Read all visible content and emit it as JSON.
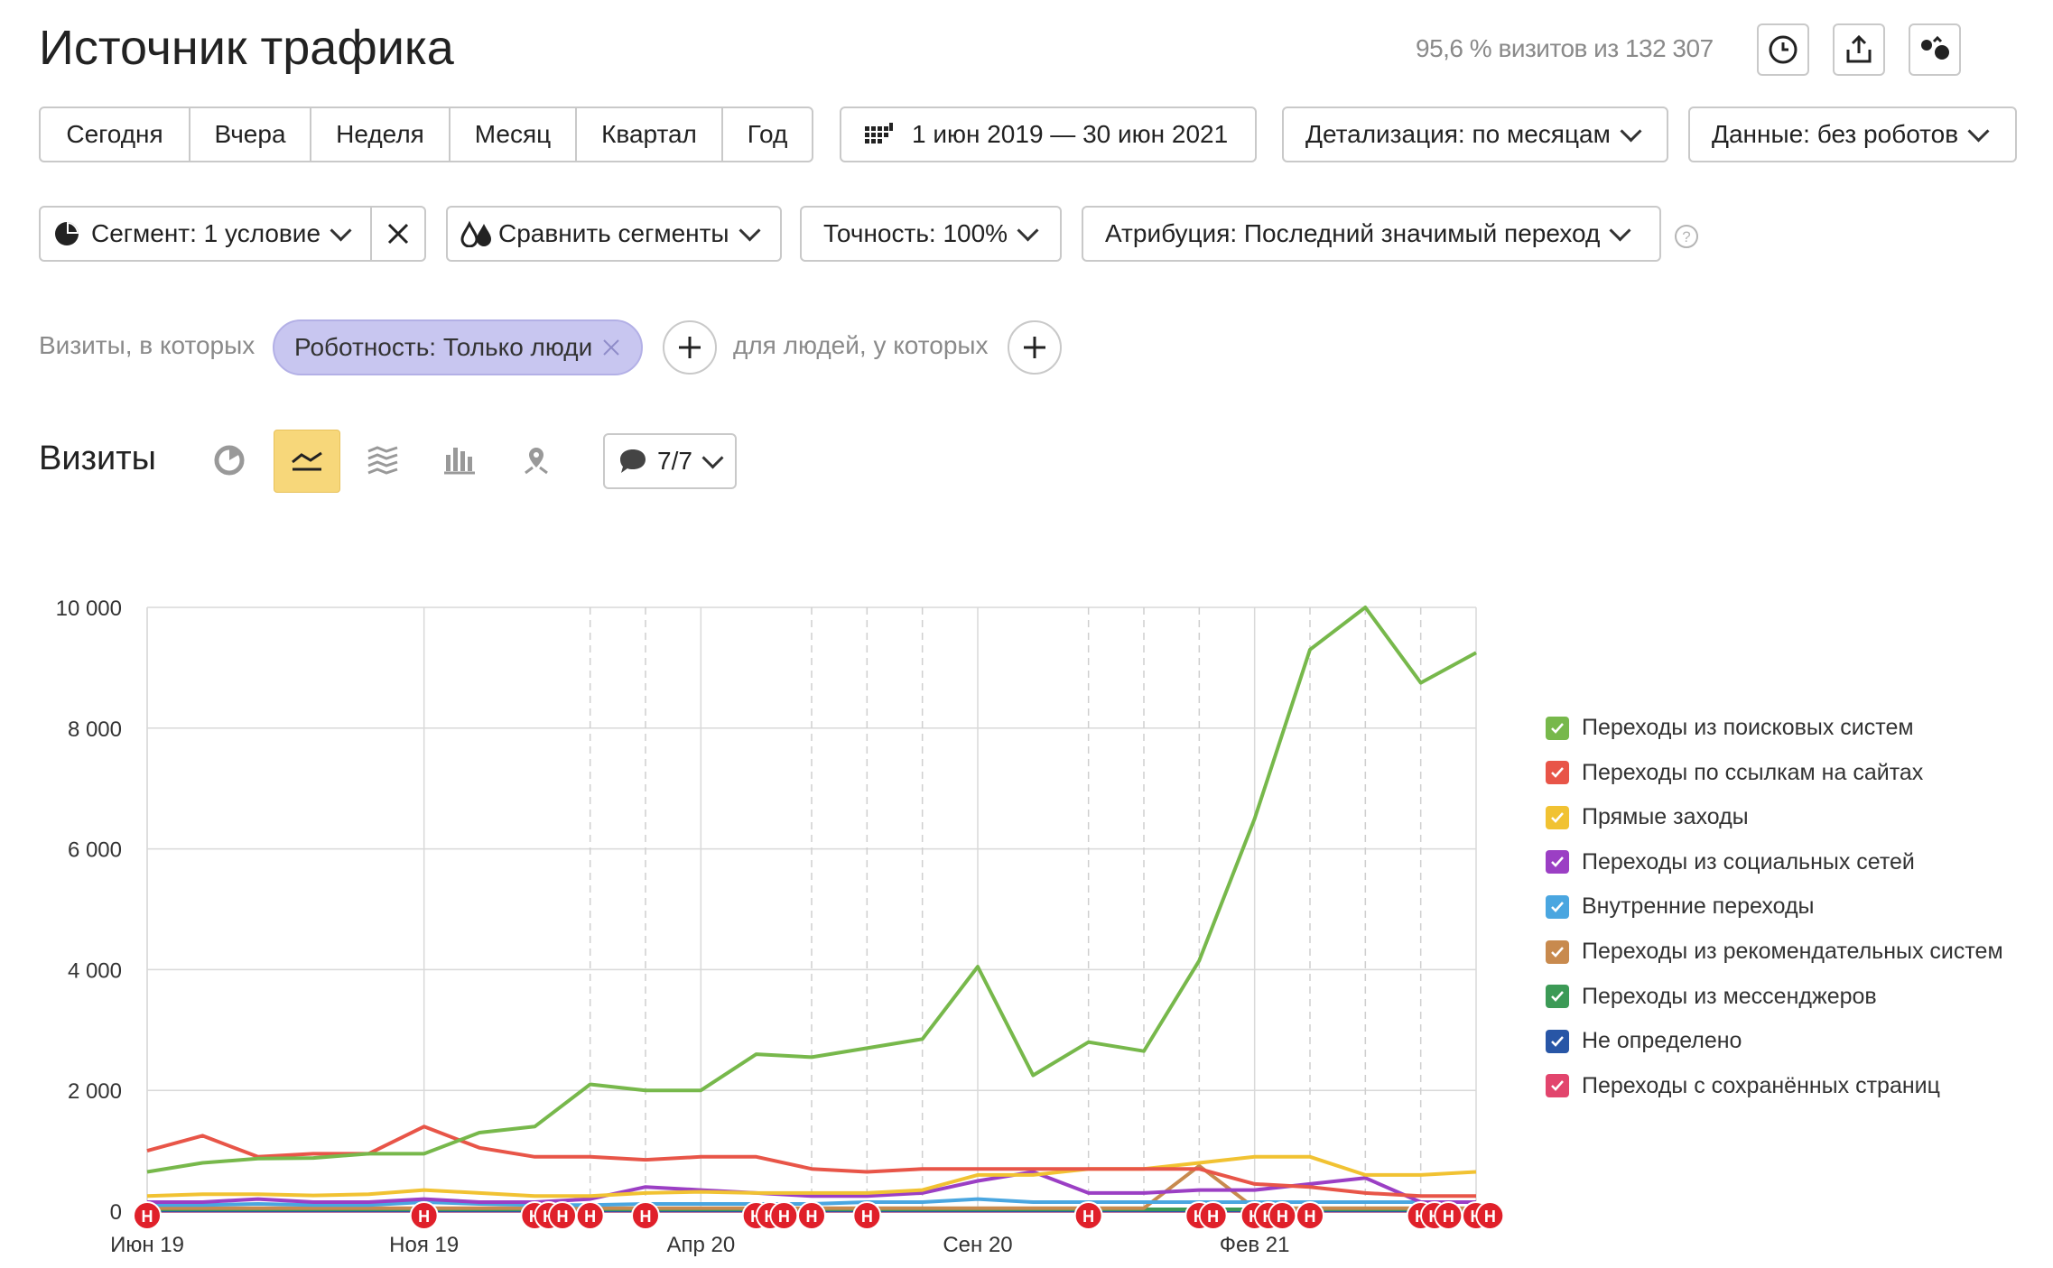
{
  "header": {
    "title": "Источник трафика",
    "visits_stat": "95,6 % визитов из 132 307",
    "actions": [
      {
        "name": "clock-icon"
      },
      {
        "name": "export-icon"
      },
      {
        "name": "favorite-icon"
      }
    ]
  },
  "period_buttons": [
    "Сегодня",
    "Вчера",
    "Неделя",
    "Месяц",
    "Квартал",
    "Год"
  ],
  "date_range": {
    "icon": "calendar-icon",
    "label": "1 июн 2019 — 30 июн 2021"
  },
  "detail": {
    "label": "Детализация: по месяцам"
  },
  "data_filter": {
    "label": "Данные: без роботов"
  },
  "segment": {
    "icon": "pie-icon",
    "label": "Сегмент: 1 условие"
  },
  "compare": {
    "icon": "drops-icon",
    "label": "Сравнить сегменты"
  },
  "accuracy": {
    "label": "Точность: 100%"
  },
  "attribution": {
    "label": "Атрибуция: Последний значимый переход"
  },
  "filters": {
    "visits_label": "Визиты, в которых",
    "chip_label": "Роботность: Только люди",
    "people_label": "для людей, у которых"
  },
  "chart_section": {
    "title": "Визиты",
    "chart_types": [
      "pie-chart-icon",
      "line-chart-icon",
      "area-chart-icon",
      "bar-chart-icon",
      "map-icon"
    ],
    "active_type": "line-chart-icon",
    "series_selector": "7/7"
  },
  "colors": {
    "search": "#77b84b",
    "links": "#e85548",
    "direct": "#f1c232",
    "social": "#9b3fc4",
    "internal": "#4aa6e0",
    "recommend": "#c88a4e",
    "messengers": "#3c9a56",
    "undefined": "#2856a6",
    "saved": "#e2456d",
    "note_marker": "#e0202a"
  },
  "chart_data": {
    "type": "line",
    "x": [
      "2019-06",
      "2019-07",
      "2019-08",
      "2019-09",
      "2019-10",
      "2019-11",
      "2019-12",
      "2020-01",
      "2020-02",
      "2020-03",
      "2020-04",
      "2020-05",
      "2020-06",
      "2020-07",
      "2020-08",
      "2020-09",
      "2020-10",
      "2020-11",
      "2020-12",
      "2021-01",
      "2021-02",
      "2021-03",
      "2021-04",
      "2021-05",
      "2021-06"
    ],
    "tick_labels": [
      "Июн 19",
      "Ноя 19",
      "Апр 20",
      "Сен 20",
      "Фев 21"
    ],
    "tick_positions": [
      "2019-06",
      "2019-11",
      "2020-04",
      "2020-09",
      "2021-02"
    ],
    "ylim": [
      0,
      10000
    ],
    "y_ticks": [
      0,
      2000,
      4000,
      6000,
      8000,
      10000
    ],
    "y_tick_labels": [
      "0",
      "2 000",
      "4 000",
      "6 000",
      "8 000",
      "10 000"
    ],
    "series": [
      {
        "name": "Переходы из поисковых систем",
        "color_key": "search",
        "values": [
          650,
          800,
          870,
          880,
          950,
          950,
          1300,
          1400,
          2100,
          2000,
          2000,
          2600,
          2550,
          2700,
          2850,
          4050,
          2250,
          2800,
          2650,
          4150,
          6500,
          9300,
          10000,
          8750,
          9250
        ]
      },
      {
        "name": "Переходы по ссылкам на сайтах",
        "color_key": "links",
        "values": [
          1000,
          1250,
          900,
          950,
          950,
          1400,
          1050,
          900,
          900,
          850,
          900,
          900,
          700,
          650,
          700,
          700,
          700,
          700,
          700,
          700,
          450,
          400,
          300,
          250,
          250
        ]
      },
      {
        "name": "Прямые заходы",
        "color_key": "direct",
        "values": [
          250,
          280,
          280,
          260,
          280,
          350,
          300,
          250,
          250,
          300,
          320,
          300,
          300,
          300,
          350,
          600,
          600,
          700,
          700,
          800,
          900,
          900,
          600,
          600,
          650
        ]
      },
      {
        "name": "Переходы из социальных сетей",
        "color_key": "social",
        "values": [
          150,
          150,
          200,
          150,
          150,
          200,
          150,
          150,
          200,
          400,
          350,
          300,
          250,
          250,
          300,
          500,
          650,
          300,
          300,
          350,
          350,
          450,
          550,
          150,
          150
        ]
      },
      {
        "name": "Внутренние переходы",
        "color_key": "internal",
        "values": [
          100,
          100,
          120,
          100,
          100,
          150,
          120,
          100,
          100,
          120,
          120,
          120,
          120,
          150,
          150,
          200,
          150,
          150,
          150,
          150,
          150,
          150,
          150,
          150,
          150
        ]
      },
      {
        "name": "Переходы из рекомендательных систем",
        "color_key": "recommend",
        "values": [
          50,
          50,
          50,
          50,
          50,
          50,
          50,
          50,
          50,
          50,
          50,
          50,
          50,
          50,
          50,
          50,
          50,
          50,
          50,
          750,
          50,
          50,
          50,
          50,
          50
        ]
      },
      {
        "name": "Переходы из мессенджеров",
        "color_key": "messengers",
        "values": [
          30,
          30,
          30,
          30,
          30,
          30,
          30,
          30,
          30,
          30,
          30,
          30,
          30,
          30,
          30,
          30,
          30,
          30,
          30,
          30,
          30,
          30,
          30,
          30,
          30
        ]
      },
      {
        "name": "Не определено",
        "color_key": "undefined",
        "values": [
          10,
          10,
          10,
          10,
          10,
          10,
          10,
          10,
          10,
          10,
          10,
          10,
          10,
          10,
          10,
          10,
          10,
          10,
          10,
          10,
          10,
          10,
          10,
          10,
          10
        ]
      },
      {
        "name": "Переходы с сохранённых страниц",
        "color_key": "saved",
        "values": [
          5,
          5,
          5,
          5,
          5,
          5,
          5,
          5,
          5,
          5,
          5,
          5,
          5,
          5,
          5,
          5,
          5,
          5,
          5,
          5,
          5,
          5,
          5,
          5,
          5
        ]
      }
    ],
    "dashed_gridlines_at": [
      "2020-02",
      "2020-03",
      "2020-06",
      "2020-07",
      "2020-08",
      "2020-11",
      "2020-12",
      "2021-01",
      "2021-03",
      "2021-04",
      "2021-05"
    ],
    "annotation_marker_text": "Н",
    "annotation_markers_at": [
      0,
      5,
      7,
      7.25,
      7.5,
      8,
      9,
      11,
      11.25,
      11.5,
      12,
      13,
      17,
      19,
      19.25,
      20,
      20.25,
      20.5,
      21,
      23,
      23.25,
      23.5,
      24,
      24.25
    ],
    "legend_placement": "right"
  }
}
